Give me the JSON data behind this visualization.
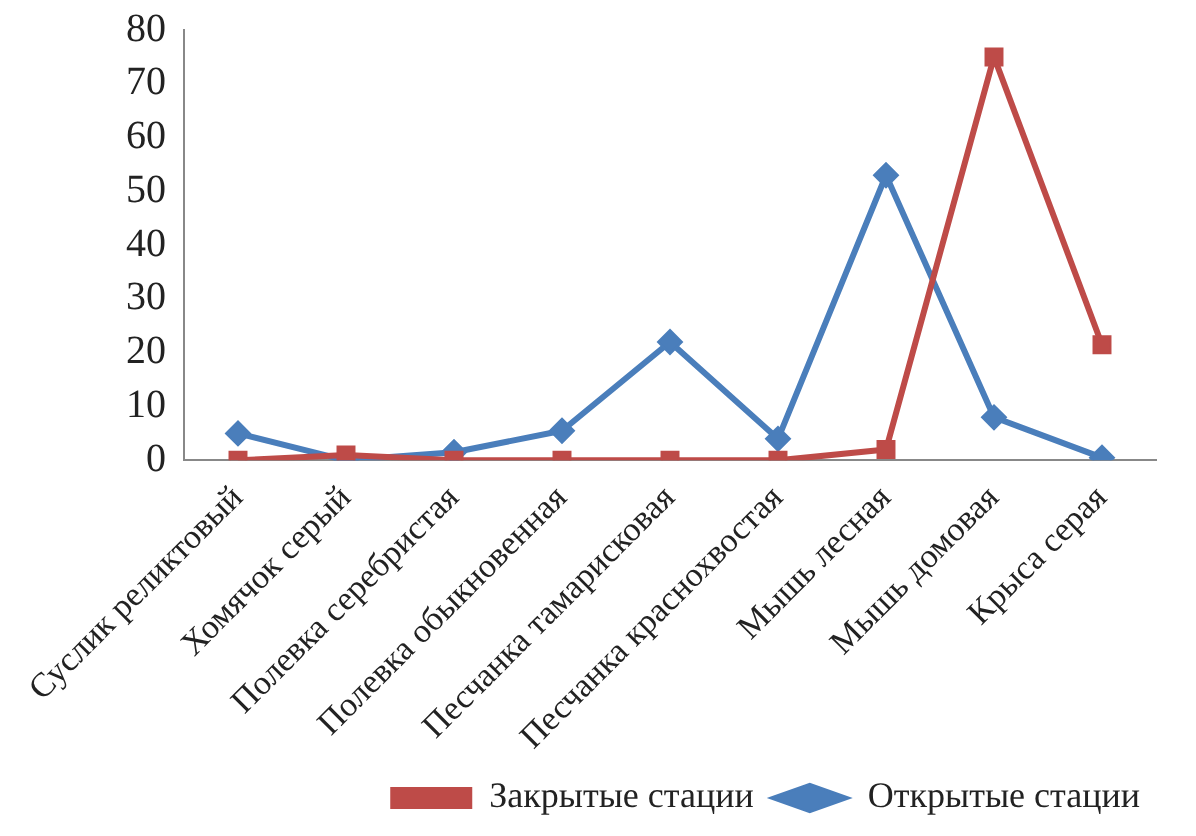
{
  "chart_data": {
    "type": "line",
    "categories": [
      "Суслик реликтовый",
      "Хомячок серый",
      "Полевка серебристая",
      "Полевка обыкновенная",
      "Песчанка тамарисковая",
      "Песчанка краснохвостая",
      "Мышь лесная",
      "Мышь домовая",
      "Крыса серая"
    ],
    "series": [
      {
        "name": "Открытые стации",
        "color": "#4a7ebb",
        "marker": "diamond",
        "values": [
          5,
          0,
          1.5,
          5.5,
          22,
          4,
          53,
          8,
          0.5
        ]
      },
      {
        "name": "Закрытые стации",
        "color": "#be4b48",
        "marker": "square",
        "values": [
          0,
          1,
          0,
          0,
          0,
          0,
          2,
          75,
          21.5
        ]
      }
    ],
    "ylim": [
      0,
      80
    ],
    "yticks": [
      0,
      10,
      20,
      30,
      40,
      50,
      60,
      70,
      80
    ],
    "grid": false,
    "legend": "bottom right",
    "line_style": "solid"
  }
}
